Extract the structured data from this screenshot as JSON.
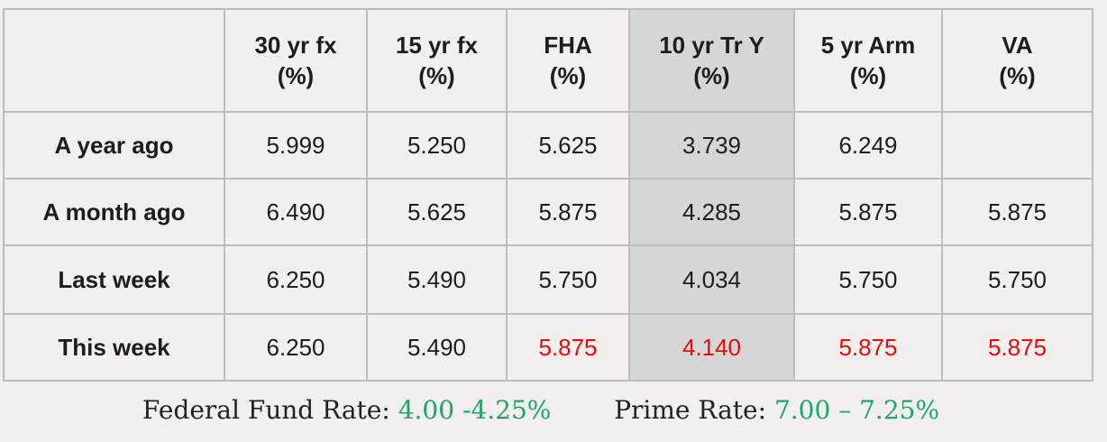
{
  "table": {
    "columns": [
      {
        "name": "30 yr fx",
        "unit": "(%)"
      },
      {
        "name": "15 yr fx",
        "unit": "(%)"
      },
      {
        "name": "FHA",
        "unit": "(%)"
      },
      {
        "name": "10 yr Tr Y",
        "unit": "(%)"
      },
      {
        "name": "5 yr Arm",
        "unit": "(%)"
      },
      {
        "name": "VA",
        "unit": "(%)"
      }
    ],
    "rows": [
      {
        "label": "A year ago",
        "values": [
          "5.999",
          "5.250",
          "5.625",
          "3.739",
          "6.249",
          ""
        ]
      },
      {
        "label": "A month ago",
        "values": [
          "6.490",
          "5.625",
          "5.875",
          "4.285",
          "5.875",
          "5.875"
        ]
      },
      {
        "label": "Last week",
        "values": [
          "6.250",
          "5.490",
          "5.750",
          "4.034",
          "5.750",
          "5.750"
        ]
      },
      {
        "label": "This week",
        "values": [
          "6.250",
          "5.490",
          "5.875",
          "4.140",
          "5.875",
          "5.875"
        ]
      }
    ],
    "highlight_color": "#d6d6d6",
    "changed_value_color": "#e01010"
  },
  "footer": {
    "fed_label": "Federal Fund Rate:",
    "fed_value": "4.00 -4.25%",
    "prime_label": "Prime Rate:",
    "prime_value": "7.00 – 7.25%",
    "value_color": "#1aa86a"
  }
}
